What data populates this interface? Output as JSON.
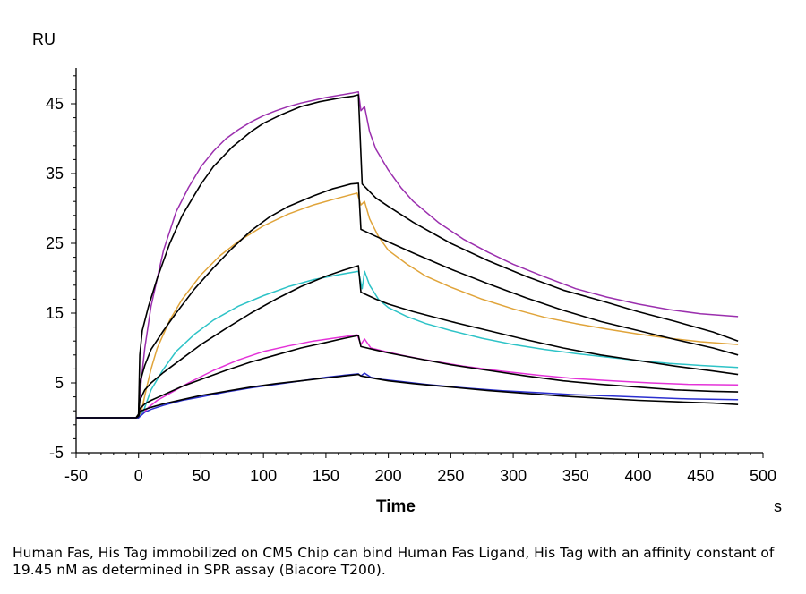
{
  "chart_data": {
    "type": "line",
    "ylabel": "RU",
    "xlabel": "Time",
    "xunit": "s",
    "xlim": [
      -50,
      500
    ],
    "ylim": [
      -5,
      50
    ],
    "xticks": [
      -50,
      0,
      50,
      100,
      150,
      200,
      250,
      300,
      350,
      400,
      450,
      500
    ],
    "yticks": [
      -5,
      5,
      15,
      25,
      35,
      45
    ],
    "grid": false,
    "legend": "none",
    "series": [
      {
        "color": "#9b2fae",
        "points": [
          [
            -50,
            0
          ],
          [
            -2,
            0
          ],
          [
            0,
            0.3
          ],
          [
            2,
            5
          ],
          [
            5,
            10
          ],
          [
            10,
            16
          ],
          [
            20,
            24
          ],
          [
            30,
            29.5
          ],
          [
            40,
            33
          ],
          [
            50,
            36
          ],
          [
            60,
            38.2
          ],
          [
            70,
            40
          ],
          [
            80,
            41.3
          ],
          [
            90,
            42.4
          ],
          [
            100,
            43.3
          ],
          [
            110,
            44
          ],
          [
            120,
            44.6
          ],
          [
            130,
            45.1
          ],
          [
            140,
            45.5
          ],
          [
            150,
            45.9
          ],
          [
            160,
            46.2
          ],
          [
            170,
            46.5
          ],
          [
            176,
            46.7
          ],
          [
            178,
            44
          ],
          [
            181,
            44.6
          ],
          [
            185,
            41
          ],
          [
            190,
            38.5
          ],
          [
            200,
            35.5
          ],
          [
            210,
            33
          ],
          [
            220,
            31
          ],
          [
            240,
            28
          ],
          [
            260,
            25.6
          ],
          [
            280,
            23.7
          ],
          [
            300,
            22
          ],
          [
            325,
            20.2
          ],
          [
            350,
            18.5
          ],
          [
            375,
            17.3
          ],
          [
            400,
            16.3
          ],
          [
            425,
            15.5
          ],
          [
            450,
            14.9
          ],
          [
            480,
            14.5
          ]
        ]
      },
      {
        "color": "#000000",
        "points": [
          [
            -50,
            0
          ],
          [
            -2,
            0
          ],
          [
            0,
            0.5
          ],
          [
            1,
            9
          ],
          [
            3,
            12.5
          ],
          [
            8,
            16
          ],
          [
            15,
            20
          ],
          [
            25,
            25
          ],
          [
            35,
            29
          ],
          [
            50,
            33.5
          ],
          [
            60,
            36
          ],
          [
            75,
            38.8
          ],
          [
            90,
            41
          ],
          [
            100,
            42.2
          ],
          [
            115,
            43.5
          ],
          [
            130,
            44.6
          ],
          [
            145,
            45.3
          ],
          [
            160,
            45.8
          ],
          [
            172,
            46.1
          ],
          [
            176,
            46.3
          ],
          [
            179,
            33.5
          ],
          [
            190,
            31.5
          ],
          [
            200,
            30.3
          ],
          [
            220,
            28
          ],
          [
            250,
            25
          ],
          [
            280,
            22.5
          ],
          [
            310,
            20.3
          ],
          [
            340,
            18.3
          ],
          [
            370,
            16.8
          ],
          [
            400,
            15.2
          ],
          [
            430,
            13.8
          ],
          [
            460,
            12.3
          ],
          [
            480,
            11
          ]
        ]
      },
      {
        "color": "#e0a43a",
        "points": [
          [
            -50,
            0
          ],
          [
            -2,
            0
          ],
          [
            0,
            0
          ],
          [
            3,
            1.5
          ],
          [
            6,
            4
          ],
          [
            10,
            7
          ],
          [
            15,
            10
          ],
          [
            25,
            14
          ],
          [
            35,
            17
          ],
          [
            50,
            20.5
          ],
          [
            65,
            23.2
          ],
          [
            80,
            25.3
          ],
          [
            100,
            27.5
          ],
          [
            120,
            29.2
          ],
          [
            140,
            30.5
          ],
          [
            160,
            31.5
          ],
          [
            175,
            32.2
          ],
          [
            178,
            30.5
          ],
          [
            181,
            31
          ],
          [
            185,
            28.5
          ],
          [
            192,
            26
          ],
          [
            200,
            24
          ],
          [
            215,
            22
          ],
          [
            230,
            20.3
          ],
          [
            250,
            18.7
          ],
          [
            275,
            17
          ],
          [
            300,
            15.6
          ],
          [
            325,
            14.4
          ],
          [
            350,
            13.5
          ],
          [
            375,
            12.7
          ],
          [
            400,
            12
          ],
          [
            425,
            11.4
          ],
          [
            450,
            10.9
          ],
          [
            480,
            10.5
          ]
        ]
      },
      {
        "color": "#000000",
        "points": [
          [
            -50,
            0
          ],
          [
            -2,
            0
          ],
          [
            0,
            0.5
          ],
          [
            1,
            5
          ],
          [
            5,
            7.5
          ],
          [
            10,
            9.8
          ],
          [
            20,
            12.5
          ],
          [
            30,
            15
          ],
          [
            45,
            18.5
          ],
          [
            60,
            21.5
          ],
          [
            75,
            24.3
          ],
          [
            90,
            26.8
          ],
          [
            105,
            28.8
          ],
          [
            120,
            30.3
          ],
          [
            140,
            31.8
          ],
          [
            155,
            32.8
          ],
          [
            170,
            33.5
          ],
          [
            176,
            33.6
          ],
          [
            178,
            27
          ],
          [
            190,
            26
          ],
          [
            200,
            25.2
          ],
          [
            220,
            23.6
          ],
          [
            250,
            21.3
          ],
          [
            280,
            19.2
          ],
          [
            310,
            17.2
          ],
          [
            340,
            15.4
          ],
          [
            370,
            13.8
          ],
          [
            400,
            12.5
          ],
          [
            430,
            11.2
          ],
          [
            460,
            10
          ],
          [
            480,
            9
          ]
        ]
      },
      {
        "color": "#2ec3c7",
        "points": [
          [
            -50,
            0
          ],
          [
            -2,
            0
          ],
          [
            0,
            0
          ],
          [
            4,
            1
          ],
          [
            7,
            2.5
          ],
          [
            10,
            4
          ],
          [
            20,
            7
          ],
          [
            30,
            9.5
          ],
          [
            45,
            12
          ],
          [
            60,
            14
          ],
          [
            80,
            16
          ],
          [
            100,
            17.5
          ],
          [
            120,
            18.8
          ],
          [
            140,
            19.8
          ],
          [
            160,
            20.5
          ],
          [
            176,
            21
          ],
          [
            179,
            18.5
          ],
          [
            181,
            21
          ],
          [
            185,
            19
          ],
          [
            192,
            17
          ],
          [
            200,
            15.8
          ],
          [
            215,
            14.5
          ],
          [
            230,
            13.5
          ],
          [
            250,
            12.5
          ],
          [
            275,
            11.4
          ],
          [
            300,
            10.5
          ],
          [
            325,
            9.8
          ],
          [
            350,
            9.2
          ],
          [
            375,
            8.7
          ],
          [
            400,
            8.2
          ],
          [
            425,
            7.8
          ],
          [
            450,
            7.5
          ],
          [
            480,
            7.2
          ]
        ]
      },
      {
        "color": "#000000",
        "points": [
          [
            -50,
            0
          ],
          [
            -2,
            0
          ],
          [
            0,
            0.3
          ],
          [
            1,
            2.5
          ],
          [
            5,
            4
          ],
          [
            10,
            5
          ],
          [
            20,
            6.5
          ],
          [
            35,
            8.5
          ],
          [
            50,
            10.5
          ],
          [
            70,
            12.8
          ],
          [
            90,
            15
          ],
          [
            110,
            17
          ],
          [
            130,
            18.8
          ],
          [
            150,
            20.3
          ],
          [
            165,
            21.2
          ],
          [
            176,
            21.8
          ],
          [
            178,
            18
          ],
          [
            190,
            17
          ],
          [
            200,
            16.3
          ],
          [
            220,
            15.2
          ],
          [
            250,
            13.8
          ],
          [
            280,
            12.5
          ],
          [
            310,
            11.2
          ],
          [
            340,
            10
          ],
          [
            370,
            9
          ],
          [
            400,
            8.2
          ],
          [
            430,
            7.4
          ],
          [
            460,
            6.7
          ],
          [
            480,
            6.2
          ]
        ]
      },
      {
        "color": "#e432d8",
        "points": [
          [
            -50,
            0
          ],
          [
            -2,
            0
          ],
          [
            0,
            0
          ],
          [
            3,
            0.5
          ],
          [
            8,
            1.5
          ],
          [
            15,
            2.5
          ],
          [
            25,
            3.5
          ],
          [
            40,
            5
          ],
          [
            60,
            6.8
          ],
          [
            80,
            8.3
          ],
          [
            100,
            9.5
          ],
          [
            120,
            10.3
          ],
          [
            140,
            11
          ],
          [
            160,
            11.5
          ],
          [
            175,
            11.9
          ],
          [
            178,
            10.5
          ],
          [
            181,
            11.3
          ],
          [
            186,
            10
          ],
          [
            195,
            9.6
          ],
          [
            210,
            9
          ],
          [
            230,
            8.3
          ],
          [
            260,
            7.4
          ],
          [
            290,
            6.7
          ],
          [
            320,
            6.1
          ],
          [
            350,
            5.6
          ],
          [
            380,
            5.3
          ],
          [
            410,
            5
          ],
          [
            440,
            4.8
          ],
          [
            480,
            4.7
          ]
        ]
      },
      {
        "color": "#000000",
        "points": [
          [
            -50,
            0
          ],
          [
            -2,
            0
          ],
          [
            0,
            0
          ],
          [
            1,
            1.3
          ],
          [
            5,
            2
          ],
          [
            10,
            2.5
          ],
          [
            20,
            3.3
          ],
          [
            35,
            4.5
          ],
          [
            50,
            5.5
          ],
          [
            70,
            6.8
          ],
          [
            90,
            8
          ],
          [
            110,
            9
          ],
          [
            130,
            10
          ],
          [
            150,
            10.8
          ],
          [
            165,
            11.4
          ],
          [
            176,
            11.8
          ],
          [
            178,
            10.2
          ],
          [
            190,
            9.7
          ],
          [
            200,
            9.3
          ],
          [
            220,
            8.6
          ],
          [
            250,
            7.6
          ],
          [
            280,
            6.8
          ],
          [
            310,
            6
          ],
          [
            340,
            5.3
          ],
          [
            370,
            4.8
          ],
          [
            400,
            4.4
          ],
          [
            430,
            4
          ],
          [
            460,
            3.8
          ],
          [
            480,
            3.7
          ]
        ]
      },
      {
        "color": "#2b2fcf",
        "points": [
          [
            -50,
            0
          ],
          [
            -2,
            0
          ],
          [
            0,
            0
          ],
          [
            5,
            0.8
          ],
          [
            10,
            1.2
          ],
          [
            20,
            1.8
          ],
          [
            35,
            2.5
          ],
          [
            50,
            3
          ],
          [
            70,
            3.7
          ],
          [
            90,
            4.3
          ],
          [
            110,
            4.8
          ],
          [
            130,
            5.3
          ],
          [
            150,
            5.8
          ],
          [
            165,
            6.1
          ],
          [
            176,
            6.3
          ],
          [
            178,
            6
          ],
          [
            181,
            6.4
          ],
          [
            186,
            5.8
          ],
          [
            195,
            5.5
          ],
          [
            210,
            5.2
          ],
          [
            230,
            4.8
          ],
          [
            260,
            4.3
          ],
          [
            290,
            3.9
          ],
          [
            320,
            3.6
          ],
          [
            350,
            3.3
          ],
          [
            380,
            3.1
          ],
          [
            410,
            2.9
          ],
          [
            440,
            2.7
          ],
          [
            480,
            2.6
          ]
        ]
      },
      {
        "color": "#000000",
        "points": [
          [
            -50,
            0
          ],
          [
            -2,
            0
          ],
          [
            0,
            0.2
          ],
          [
            1,
            0.9
          ],
          [
            5,
            1.2
          ],
          [
            10,
            1.5
          ],
          [
            20,
            2
          ],
          [
            35,
            2.6
          ],
          [
            50,
            3.2
          ],
          [
            70,
            3.8
          ],
          [
            90,
            4.4
          ],
          [
            110,
            4.9
          ],
          [
            130,
            5.3
          ],
          [
            150,
            5.7
          ],
          [
            165,
            6
          ],
          [
            176,
            6.2
          ],
          [
            178,
            6
          ],
          [
            190,
            5.6
          ],
          [
            200,
            5.3
          ],
          [
            220,
            4.9
          ],
          [
            250,
            4.4
          ],
          [
            280,
            3.9
          ],
          [
            310,
            3.5
          ],
          [
            340,
            3.1
          ],
          [
            370,
            2.8
          ],
          [
            400,
            2.5
          ],
          [
            430,
            2.3
          ],
          [
            460,
            2.1
          ],
          [
            480,
            1.9
          ]
        ]
      }
    ]
  },
  "caption": "Human Fas, His Tag immobilized on CM5 Chip can bind Human Fas Ligand, His Tag with an affinity constant of 19.45 nM as determined in SPR assay (Biacore T200)."
}
